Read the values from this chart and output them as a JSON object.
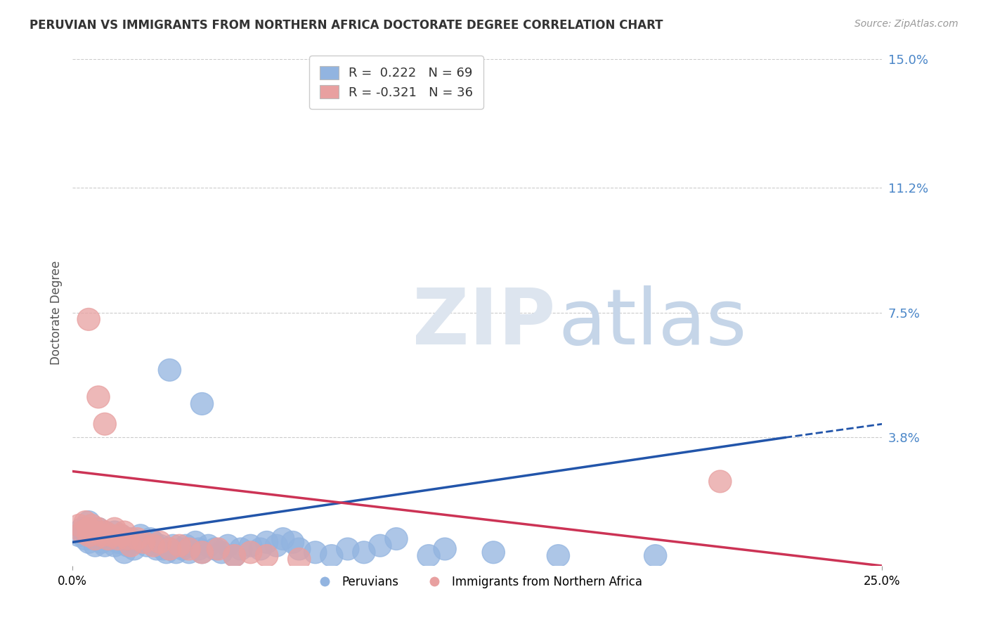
{
  "title": "PERUVIAN VS IMMIGRANTS FROM NORTHERN AFRICA DOCTORATE DEGREE CORRELATION CHART",
  "source_text": "Source: ZipAtlas.com",
  "ylabel": "Doctorate Degree",
  "xlim": [
    0.0,
    0.25
  ],
  "ylim": [
    0.0,
    0.15
  ],
  "ytick_vals": [
    0.0,
    0.038,
    0.075,
    0.112,
    0.15
  ],
  "ytick_labels": [
    "",
    "3.8%",
    "7.5%",
    "11.2%",
    "15.0%"
  ],
  "xtick_vals": [
    0.0,
    0.25
  ],
  "xtick_labels": [
    "0.0%",
    "25.0%"
  ],
  "r_blue": 0.222,
  "n_blue": 69,
  "r_pink": -0.321,
  "n_pink": 36,
  "blue_color": "#92b4e0",
  "pink_color": "#e8a0a0",
  "line_blue_color": "#2255aa",
  "line_pink_color": "#cc3355",
  "legend_label_blue": "Peruvians",
  "legend_label_pink": "Immigrants from Northern Africa",
  "blue_scatter": [
    [
      0.002,
      0.009
    ],
    [
      0.003,
      0.011
    ],
    [
      0.004,
      0.008
    ],
    [
      0.005,
      0.013
    ],
    [
      0.005,
      0.007
    ],
    [
      0.006,
      0.01
    ],
    [
      0.007,
      0.008
    ],
    [
      0.007,
      0.006
    ],
    [
      0.008,
      0.011
    ],
    [
      0.009,
      0.009
    ],
    [
      0.009,
      0.007
    ],
    [
      0.01,
      0.01
    ],
    [
      0.01,
      0.006
    ],
    [
      0.011,
      0.009
    ],
    [
      0.012,
      0.008
    ],
    [
      0.013,
      0.01
    ],
    [
      0.013,
      0.006
    ],
    [
      0.014,
      0.007
    ],
    [
      0.015,
      0.009
    ],
    [
      0.016,
      0.008
    ],
    [
      0.016,
      0.004
    ],
    [
      0.017,
      0.006
    ],
    [
      0.018,
      0.008
    ],
    [
      0.019,
      0.005
    ],
    [
      0.02,
      0.007
    ],
    [
      0.021,
      0.009
    ],
    [
      0.022,
      0.007
    ],
    [
      0.023,
      0.006
    ],
    [
      0.024,
      0.008
    ],
    [
      0.025,
      0.007
    ],
    [
      0.026,
      0.005
    ],
    [
      0.027,
      0.006
    ],
    [
      0.028,
      0.005
    ],
    [
      0.029,
      0.004
    ],
    [
      0.03,
      0.005
    ],
    [
      0.031,
      0.006
    ],
    [
      0.032,
      0.004
    ],
    [
      0.034,
      0.005
    ],
    [
      0.035,
      0.006
    ],
    [
      0.036,
      0.004
    ],
    [
      0.038,
      0.007
    ],
    [
      0.039,
      0.005
    ],
    [
      0.04,
      0.004
    ],
    [
      0.042,
      0.006
    ],
    [
      0.044,
      0.005
    ],
    [
      0.046,
      0.004
    ],
    [
      0.048,
      0.006
    ],
    [
      0.05,
      0.003
    ],
    [
      0.052,
      0.005
    ],
    [
      0.055,
      0.006
    ],
    [
      0.058,
      0.005
    ],
    [
      0.06,
      0.007
    ],
    [
      0.063,
      0.006
    ],
    [
      0.065,
      0.008
    ],
    [
      0.068,
      0.007
    ],
    [
      0.07,
      0.005
    ],
    [
      0.075,
      0.004
    ],
    [
      0.08,
      0.003
    ],
    [
      0.085,
      0.005
    ],
    [
      0.09,
      0.004
    ],
    [
      0.095,
      0.006
    ],
    [
      0.1,
      0.008
    ],
    [
      0.11,
      0.003
    ],
    [
      0.115,
      0.005
    ],
    [
      0.13,
      0.004
    ],
    [
      0.15,
      0.003
    ],
    [
      0.18,
      0.003
    ],
    [
      0.03,
      0.058
    ],
    [
      0.04,
      0.048
    ]
  ],
  "pink_scatter": [
    [
      0.002,
      0.012
    ],
    [
      0.003,
      0.01
    ],
    [
      0.004,
      0.013
    ],
    [
      0.005,
      0.011
    ],
    [
      0.005,
      0.009
    ],
    [
      0.006,
      0.012
    ],
    [
      0.007,
      0.01
    ],
    [
      0.007,
      0.008
    ],
    [
      0.008,
      0.011
    ],
    [
      0.009,
      0.009
    ],
    [
      0.01,
      0.01
    ],
    [
      0.011,
      0.008
    ],
    [
      0.012,
      0.009
    ],
    [
      0.013,
      0.011
    ],
    [
      0.014,
      0.008
    ],
    [
      0.015,
      0.009
    ],
    [
      0.016,
      0.01
    ],
    [
      0.017,
      0.008
    ],
    [
      0.018,
      0.006
    ],
    [
      0.02,
      0.008
    ],
    [
      0.022,
      0.007
    ],
    [
      0.025,
      0.006
    ],
    [
      0.027,
      0.007
    ],
    [
      0.03,
      0.005
    ],
    [
      0.033,
      0.006
    ],
    [
      0.036,
      0.005
    ],
    [
      0.04,
      0.004
    ],
    [
      0.045,
      0.005
    ],
    [
      0.05,
      0.003
    ],
    [
      0.055,
      0.004
    ],
    [
      0.06,
      0.003
    ],
    [
      0.07,
      0.002
    ],
    [
      0.2,
      0.025
    ],
    [
      0.005,
      0.073
    ],
    [
      0.008,
      0.05
    ],
    [
      0.01,
      0.042
    ]
  ],
  "blue_line": [
    [
      0.0,
      0.007
    ],
    [
      0.22,
      0.038
    ]
  ],
  "blue_line_dashed": [
    [
      0.22,
      0.038
    ],
    [
      0.25,
      0.042
    ]
  ],
  "pink_line": [
    [
      0.0,
      0.028
    ],
    [
      0.25,
      0.0
    ]
  ]
}
